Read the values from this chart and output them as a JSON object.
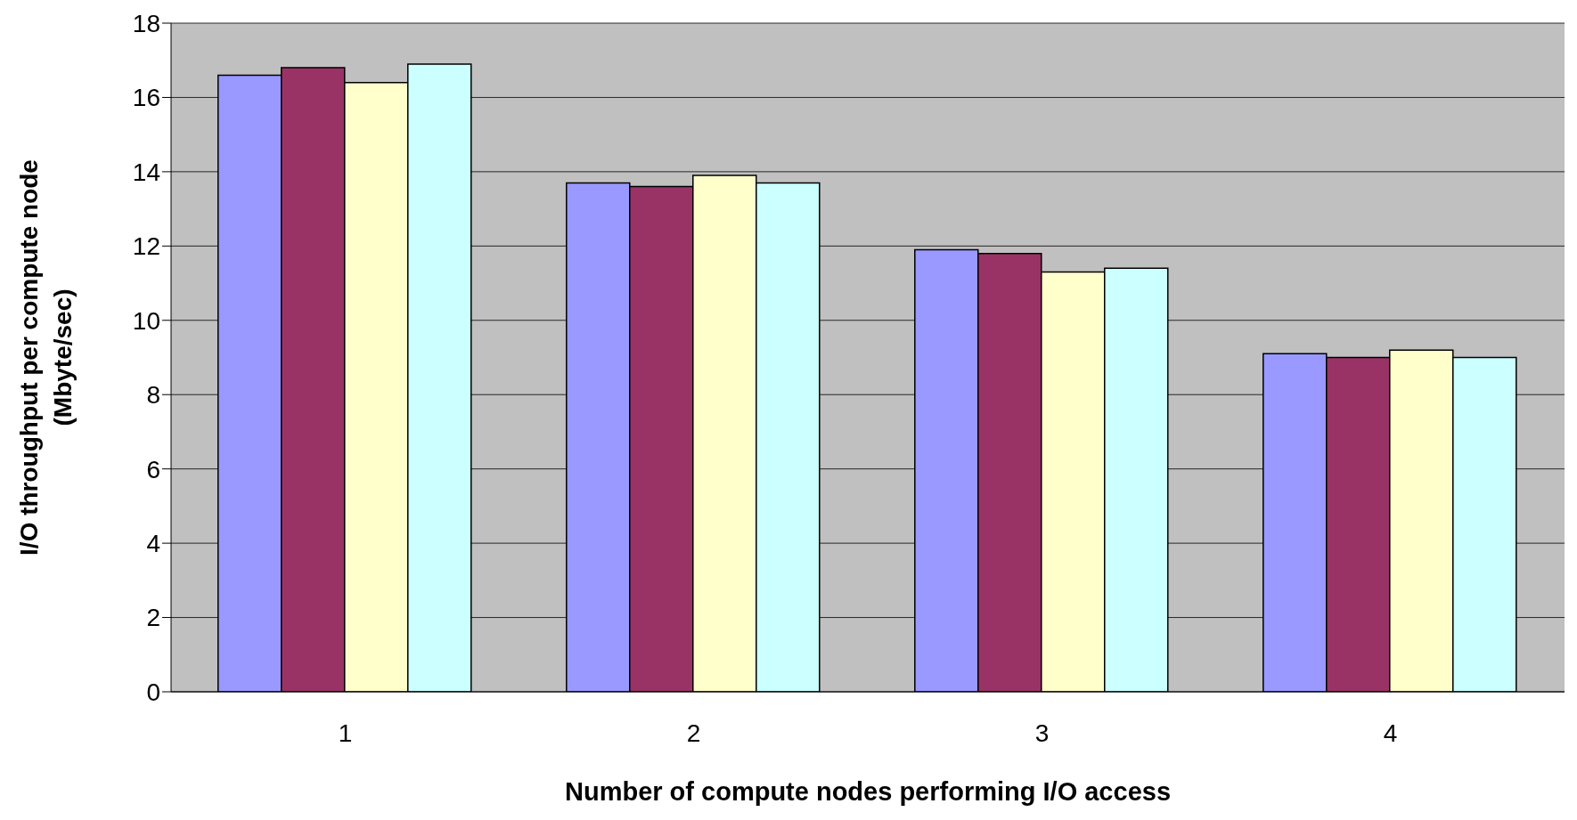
{
  "chart_data": {
    "type": "bar",
    "xlabel": "Number of compute nodes performing I/O access",
    "ylabel": "I/O throughput per compute node\n(Mbyte/sec)",
    "categories": [
      "1",
      "2",
      "3",
      "4"
    ],
    "series": [
      {
        "color": "#9999ff",
        "values": [
          16.6,
          13.7,
          11.9,
          9.1
        ]
      },
      {
        "color": "#993366",
        "values": [
          16.8,
          13.6,
          11.8,
          9.0
        ]
      },
      {
        "color": "#ffffcc",
        "values": [
          16.4,
          13.9,
          11.3,
          9.2
        ]
      },
      {
        "color": "#ccffff",
        "values": [
          16.9,
          13.7,
          11.4,
          9.0
        ]
      }
    ],
    "ylim": [
      0,
      18
    ],
    "yticks": [
      0,
      2,
      4,
      6,
      8,
      10,
      12,
      14,
      16,
      18
    ],
    "grid": "y",
    "legend": false
  }
}
